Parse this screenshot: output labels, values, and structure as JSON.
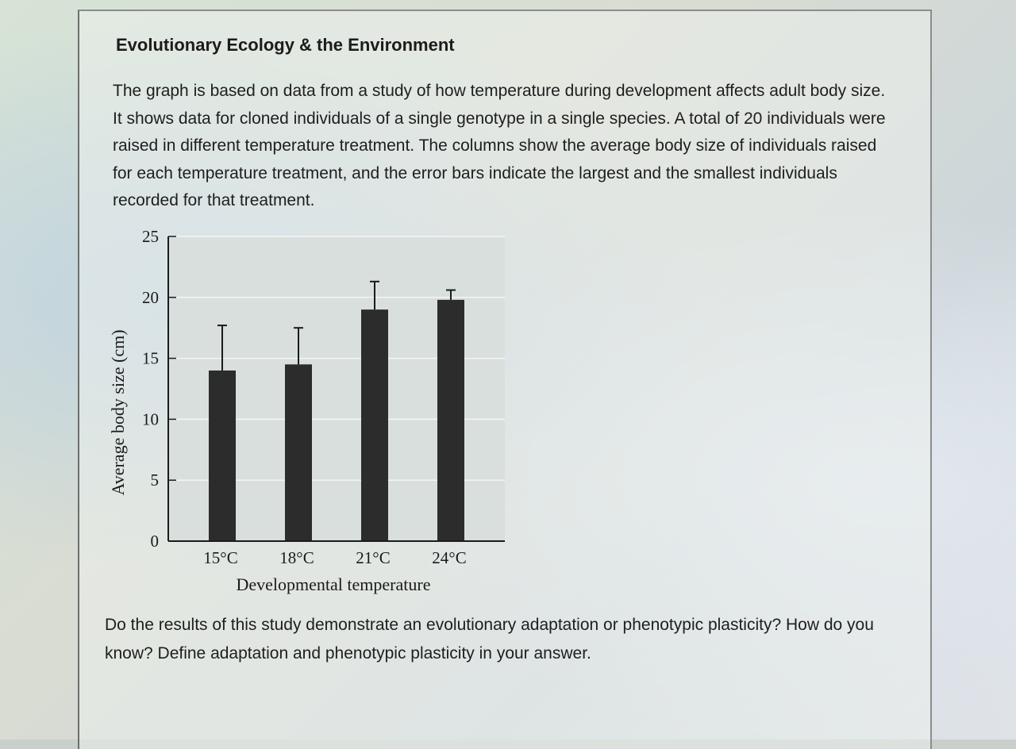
{
  "page": {
    "heading": "Evolutionary Ecology & the Environment",
    "paragraph": "The graph is based on data from a study of how temperature during development affects adult body size. It shows data for cloned individuals of a single genotype in a single species. A total of 20 individuals were raised in different temperature treatment. The columns show the average body size of individuals raised for each temperature treatment, and the error bars indicate the largest and the smallest individuals recorded for that treatment.",
    "question": "Do the results of this study demonstrate an evolutionary adaptation or phenotypic plasticity? How do you know? Define adaptation and phenotypic plasticity in your answer."
  },
  "colors": {
    "bar": "#2c2c2c",
    "plot_background": "#d9dfdd",
    "gridline": "#f4f6f4",
    "axis": "#1b1b1b"
  },
  "chart_data": {
    "type": "bar",
    "title": "",
    "xlabel": "Developmental temperature",
    "ylabel": "Average body size (cm)",
    "ylim": [
      0,
      25
    ],
    "yticks": [
      0,
      5,
      10,
      15,
      20,
      25
    ],
    "categories": [
      "15°C",
      "18°C",
      "21°C",
      "24°C"
    ],
    "series": [
      {
        "values": [
          14.0,
          14.5,
          19.0,
          19.8
        ],
        "error_max": [
          17.7,
          17.5,
          21.3,
          20.6
        ]
      }
    ],
    "grid": true,
    "legend": "none"
  }
}
